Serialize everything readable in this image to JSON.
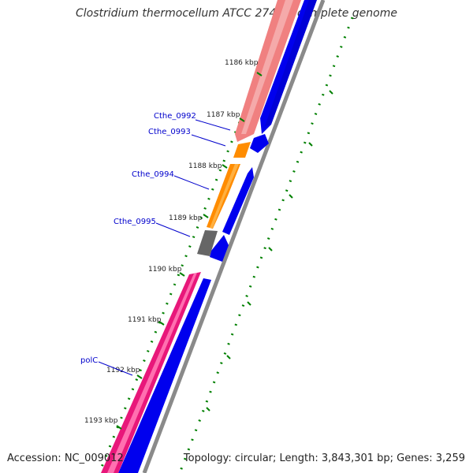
{
  "title": "Clostridium thermocellum ATCC 27405, complete genome",
  "accession": "Accession: NC_009012",
  "topology": "Topology: circular; Length: 3,843,301 bp; Genes: 3,259",
  "colors": {
    "gene_track": "#0000ee",
    "backbone": "#888888",
    "gene_label": "#0000cc",
    "tick_marks": "#008000",
    "salmon_gene": "#f08080",
    "orange_gene": "#ff8c00",
    "grey_gene": "#666666",
    "pink_gene": "#ff1493"
  },
  "kbp_ticks": [
    "1186 kbp",
    "1187 kbp",
    "1188 kbp",
    "1189 kbp",
    "1190 kbp",
    "1191 kbp",
    "1192 kbp",
    "1193 kbp"
  ],
  "gene_labels": [
    "Cthe_0992",
    "Cthe_0993",
    "Cthe_0994",
    "Cthe_0995",
    "polC"
  ]
}
